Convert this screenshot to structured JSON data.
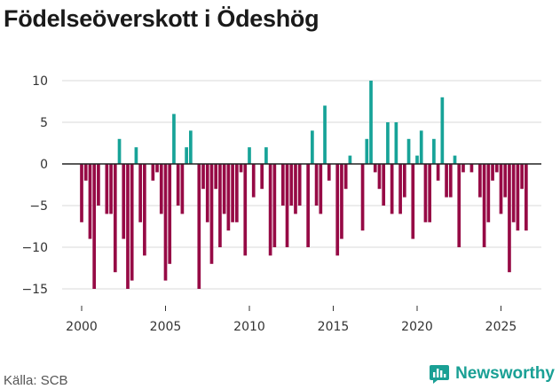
{
  "title": "Födelseöverskott i Ödeshög",
  "source": "Källa: SCB",
  "brand": {
    "name": "Newsworthy"
  },
  "colors": {
    "positive": "#17a398",
    "negative": "#960a45",
    "zero_line": "#222222",
    "grid": "#d9d9d9",
    "brand": "#1aa095"
  },
  "chart_data": {
    "type": "bar",
    "title": "Födelseöverskott i Ödeshög",
    "xlabel": "",
    "ylabel": "",
    "ylim": [
      -16.5,
      11
    ],
    "yticks": [
      -15,
      -10,
      -5,
      0,
      5,
      10
    ],
    "xticks": [
      2000,
      2005,
      2010,
      2015,
      2020,
      2025
    ],
    "x_start": 2000.0,
    "x_step": 0.25,
    "values": [
      -7,
      -2,
      -9,
      -15,
      -5,
      0,
      -6,
      -6,
      -13,
      3,
      -9,
      -15,
      -14,
      2,
      -7,
      -11,
      0,
      -2,
      -1,
      -6,
      -14,
      -12,
      6,
      -5,
      -6,
      2,
      4,
      0,
      -15,
      -3,
      -7,
      -12,
      -3,
      -10,
      -6,
      -8,
      -7,
      -7,
      -1,
      -11,
      2,
      -4,
      0,
      -3,
      2,
      -11,
      -10,
      0,
      -5,
      -10,
      -5,
      -6,
      -5,
      0,
      -10,
      4,
      -5,
      -6,
      7,
      -2,
      0,
      -11,
      -9,
      -3,
      1,
      0,
      0,
      -8,
      3,
      10,
      -1,
      -3,
      -5,
      5,
      -6,
      5,
      -6,
      -4,
      3,
      -9,
      1,
      4,
      -7,
      -7,
      3,
      -2,
      8,
      -4,
      -4,
      1,
      -10,
      -1,
      0,
      -1,
      0,
      -4,
      -10,
      -7,
      -2,
      -1,
      -6,
      -4,
      -13,
      -7,
      -8,
      -3,
      -8
    ]
  }
}
